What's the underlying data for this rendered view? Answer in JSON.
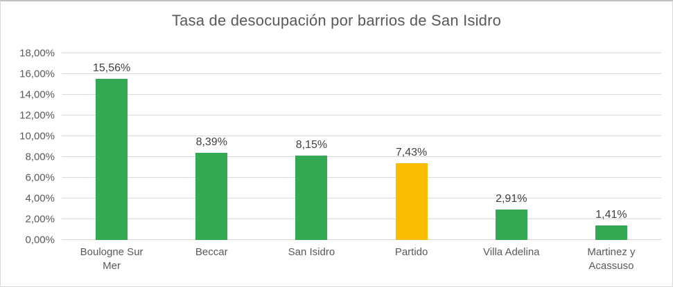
{
  "chart_data": {
    "type": "bar",
    "title": "Tasa de desocupación por barrios de San Isidro",
    "categories": [
      "Boulogne Sur Mer",
      "Beccar",
      "San Isidro",
      "Partido",
      "Villa Adelina",
      "Martinez y Acassuso"
    ],
    "values": [
      15.56,
      8.39,
      8.15,
      7.43,
      2.91,
      1.41
    ],
    "value_labels": [
      "15,56%",
      "8,39%",
      "8,15%",
      "7,43%",
      "2,91%",
      "1,41%"
    ],
    "bar_colors": [
      "#34A853",
      "#34A853",
      "#34A853",
      "#FBBC04",
      "#34A853",
      "#34A853"
    ],
    "y_tick_labels": [
      "0,00%",
      "2,00%",
      "4,00%",
      "6,00%",
      "8,00%",
      "10,00%",
      "12,00%",
      "14,00%",
      "16,00%",
      "18,00%"
    ],
    "ylim": [
      0,
      18
    ],
    "ytick_step": 2,
    "xlabel": "",
    "ylabel": "",
    "grid": "horizontal",
    "legend": "none",
    "colors": {
      "bar_default": "#34A853",
      "bar_highlight": "#FBBC04",
      "gridline": "#D9D9D9",
      "title_text": "#595959",
      "axis_text": "#595959",
      "value_label_text": "#404040"
    }
  }
}
